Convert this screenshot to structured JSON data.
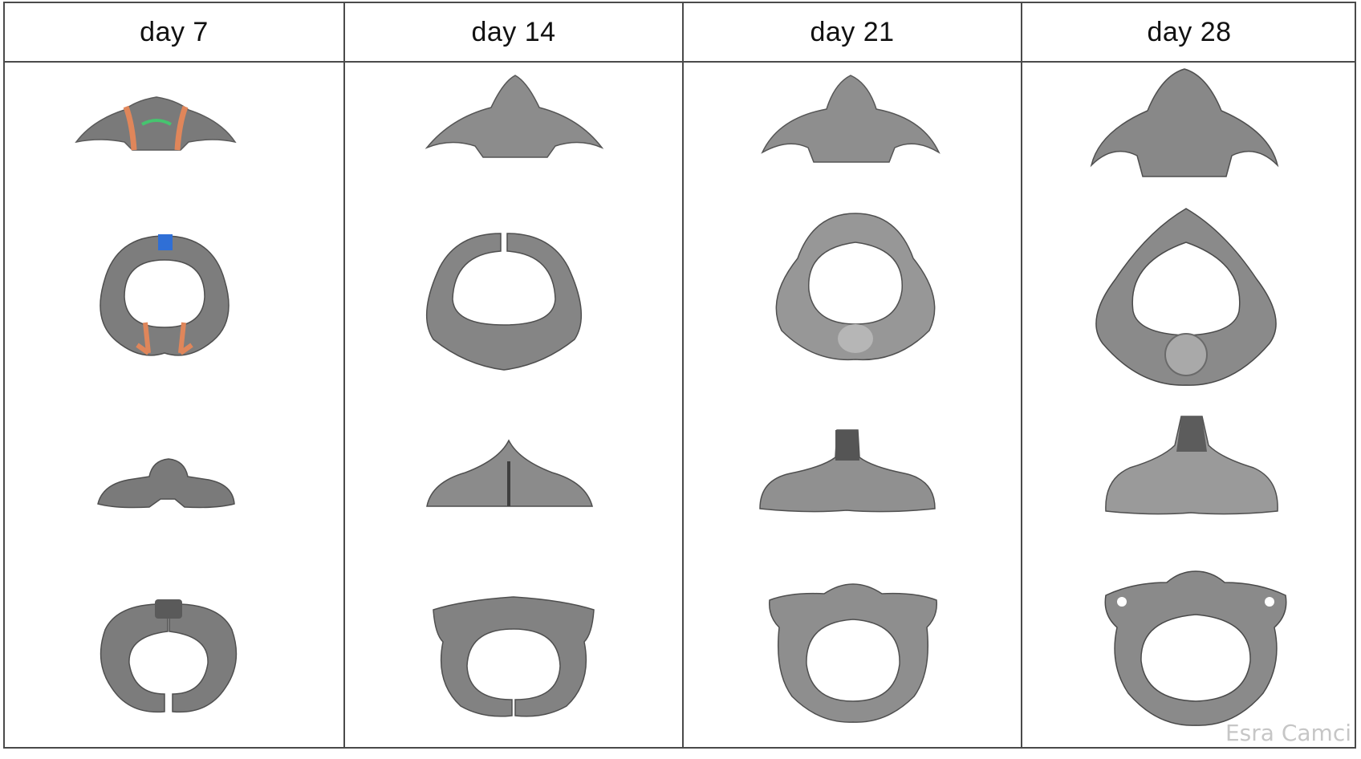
{
  "columns": [
    {
      "label": "day 7"
    },
    {
      "label": "day 14"
    },
    {
      "label": "day 21"
    },
    {
      "label": "day 28"
    }
  ],
  "watermark": "Esra Camci",
  "colors": {
    "bone_dark": "#5d5d5d",
    "bone_mid": "#858585",
    "bone_light": "#a8a8a8",
    "suture_orange": "#e0865a",
    "suture_green": "#46c46f",
    "suture_blue": "#2f6fd6",
    "grid_line": "#4a4a4a"
  }
}
